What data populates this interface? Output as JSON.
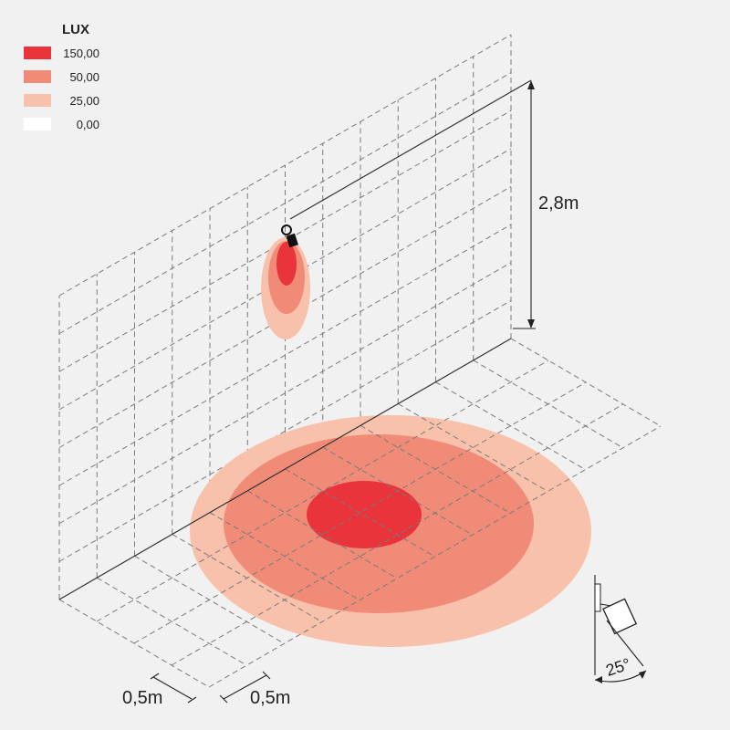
{
  "legend": {
    "title": "LUX",
    "items": [
      {
        "value": "150,00",
        "color": "#e8343a"
      },
      {
        "value": "50,00",
        "color": "#f08b78"
      },
      {
        "value": "25,00",
        "color": "#f8c1ab"
      },
      {
        "value": "0,00",
        "color": "#ffffff"
      }
    ]
  },
  "dimensions": {
    "height": "2,8m",
    "grid_x": "0,5m",
    "grid_y": "0,5m",
    "tilt_angle": "25°"
  },
  "icons": {
    "fixture": "spotlight-fixture-icon",
    "tilt_diagram": "spotlight-tilt-icon"
  }
}
